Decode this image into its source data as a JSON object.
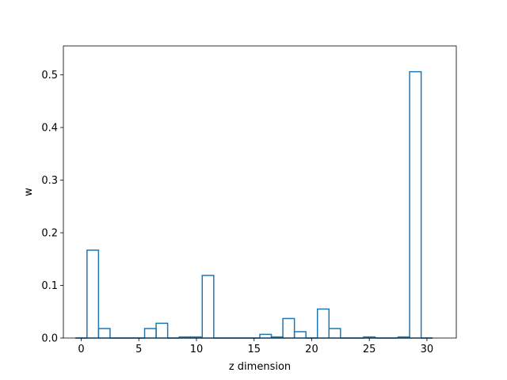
{
  "chart_data": {
    "type": "bar",
    "style": "step histogram (unfilled outline)",
    "title": "",
    "xlabel": "z dimension",
    "ylabel": "w",
    "xlim": [
      -1.55,
      32.55
    ],
    "ylim": [
      0,
      0.555
    ],
    "xticks": [
      0,
      5,
      10,
      15,
      20,
      25,
      30
    ],
    "yticks": [
      0.0,
      0.1,
      0.2,
      0.3,
      0.4,
      0.5
    ],
    "xtick_labels": [
      "0",
      "5",
      "10",
      "15",
      "20",
      "25",
      "30"
    ],
    "ytick_labels": [
      "0.0",
      "0.1",
      "0.2",
      "0.3",
      "0.4",
      "0.5"
    ],
    "categories": [
      0,
      1,
      2,
      3,
      4,
      5,
      6,
      7,
      8,
      9,
      10,
      11,
      12,
      13,
      14,
      15,
      16,
      17,
      18,
      19,
      20,
      21,
      22,
      23,
      24,
      25,
      26,
      27,
      28,
      29,
      30
    ],
    "values": [
      0.0,
      0.167,
      0.018,
      0.0,
      0.0,
      0.0,
      0.018,
      0.028,
      0.0,
      0.002,
      0.002,
      0.119,
      0.0,
      0.0,
      0.0,
      0.0,
      0.007,
      0.002,
      0.037,
      0.012,
      0.0,
      0.055,
      0.018,
      0.0,
      0.0,
      0.002,
      0.0,
      0.0,
      0.002,
      0.506,
      0.0
    ],
    "bin_width": 1,
    "line_color": "#1f77b4",
    "grid": false,
    "legend": "none"
  }
}
